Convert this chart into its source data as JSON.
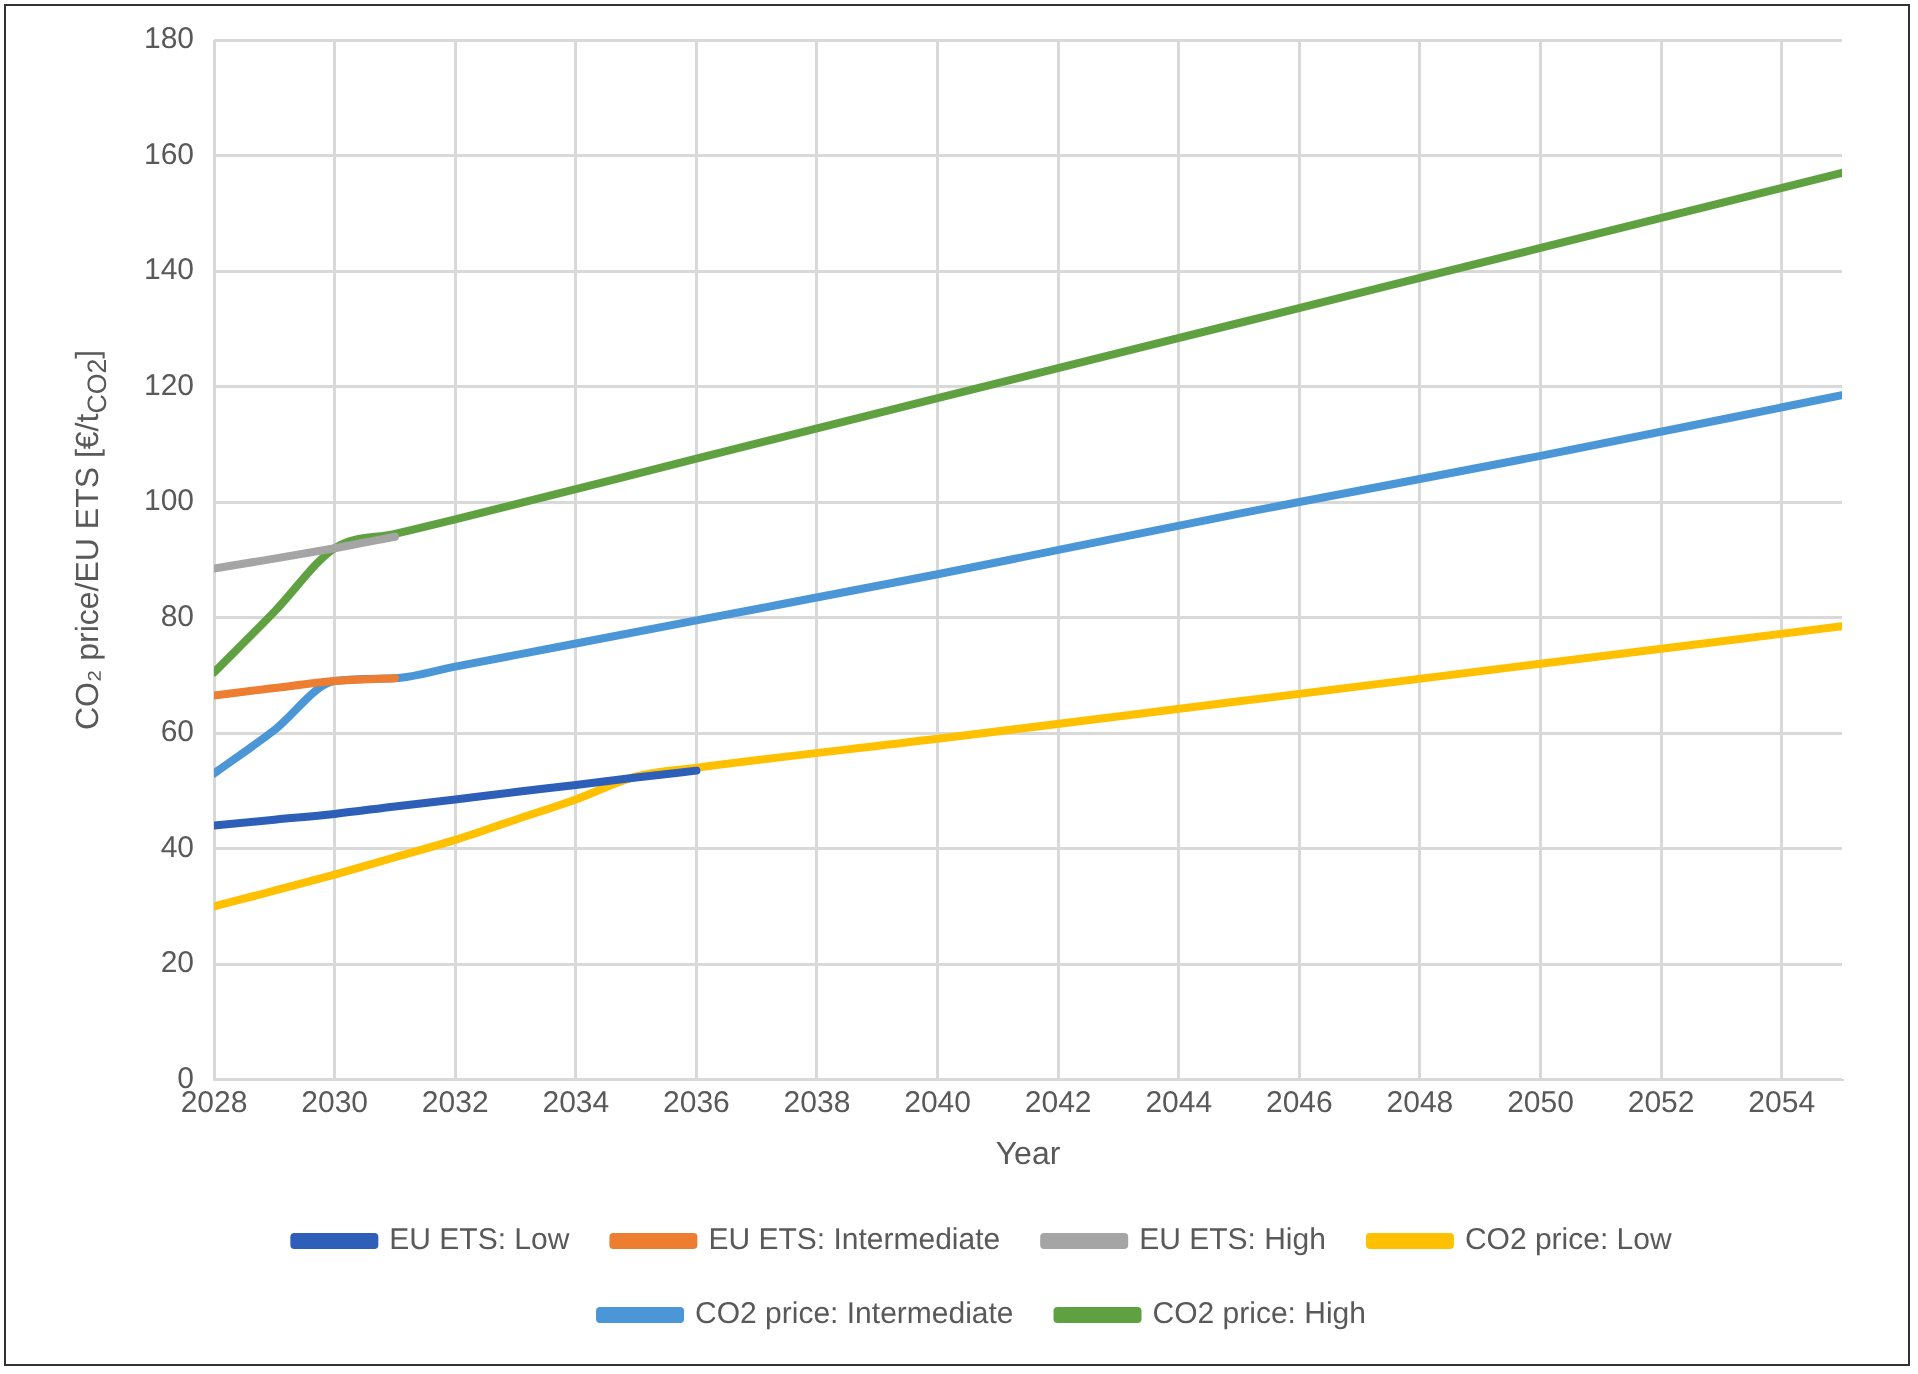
{
  "chart_data": {
    "type": "line",
    "xlabel": "Year",
    "ylabel": "CO₂ price/EU ETS  [€/t$_{CO2}$]",
    "xlim": [
      2028,
      2055
    ],
    "xticks": [
      2028,
      2030,
      2032,
      2034,
      2036,
      2038,
      2040,
      2042,
      2044,
      2046,
      2048,
      2050,
      2052,
      2054
    ],
    "ylim": [
      0,
      180
    ],
    "yticks": [
      0,
      20,
      40,
      60,
      80,
      100,
      120,
      140,
      160,
      180
    ],
    "grid": true,
    "legend": "bottom",
    "marker": "none",
    "line_style": "solid",
    "series": [
      {
        "name": "EU ETS: Low",
        "color": "#2e5fb8",
        "x": [
          2028,
          2029,
          2030,
          2031,
          2032,
          2033,
          2034,
          2035,
          2036
        ],
        "values": [
          44,
          45,
          46,
          47.3,
          48.5,
          49.8,
          51,
          52.3,
          53.5
        ]
      },
      {
        "name": "EU ETS: Intermediate",
        "color": "#ed7d31",
        "x": [
          2028,
          2029,
          2030,
          2031
        ],
        "values": [
          66.5,
          67.8,
          69,
          69.5
        ]
      },
      {
        "name": "EU ETS: High",
        "color": "#a5a5a5",
        "x": [
          2028,
          2029,
          2030,
          2031
        ],
        "values": [
          88.5,
          90.2,
          92,
          94
        ]
      },
      {
        "name": "CO2 price: Low",
        "color": "#ffc000",
        "x": [
          2028,
          2029,
          2030,
          2031,
          2032,
          2033,
          2034,
          2035,
          2036,
          2040,
          2045,
          2050,
          2055
        ],
        "values": [
          30,
          32.7,
          35.5,
          38.5,
          41.5,
          45,
          48.5,
          52.5,
          54,
          59,
          65.5,
          72,
          78.5
        ]
      },
      {
        "name": "CO2 price: Intermediate",
        "color": "#4a96d6",
        "x": [
          2028,
          2029,
          2030,
          2031,
          2032,
          2036,
          2040,
          2045,
          2050,
          2055
        ],
        "values": [
          53,
          60.5,
          69,
          69.5,
          71.5,
          79.5,
          87.5,
          98,
          108,
          118.5
        ]
      },
      {
        "name": "CO2 price: High",
        "color": "#5fa140",
        "x": [
          2028,
          2029,
          2030,
          2031,
          2032,
          2036,
          2040,
          2045,
          2050,
          2055
        ],
        "values": [
          70.5,
          81,
          92,
          94.5,
          97,
          107.5,
          118,
          131,
          144,
          157
        ]
      }
    ]
  }
}
